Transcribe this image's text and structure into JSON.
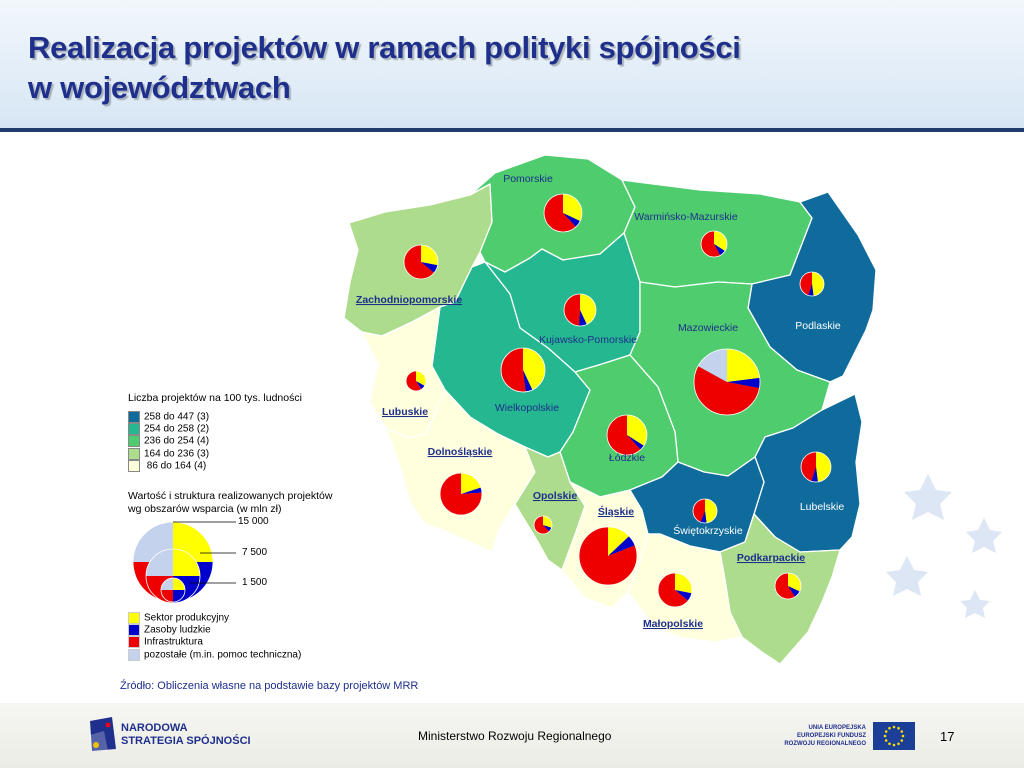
{
  "title": {
    "line1": "Realizacja projektów w ramach polityki spójności",
    "line2": "w  województwach"
  },
  "legend_density": {
    "title": "Liczba projektów na 100 tys. ludności",
    "classes": [
      {
        "label": "258 do 447  (3)",
        "color": "#0f6b9b"
      },
      {
        "label": "254 do 258  (2)",
        "color": "#25b890"
      },
      {
        "label": "236 do 254  (4)",
        "color": "#4fcc6e"
      },
      {
        "label": "164 do 236  (3)",
        "color": "#acdc8c"
      },
      {
        "label": "  86 do 164  (4)",
        "color": "#ffffdd"
      }
    ]
  },
  "legend_value": {
    "title_line1": "Wartość i struktura realizowanych projektów",
    "title_line2": "wg obszarów wsparcia (w mln zł)",
    "scale": [
      "15 000",
      "7 500",
      "1 500"
    ],
    "sectors": [
      {
        "label": "Sektor produkcyjny",
        "color": "#ffff00"
      },
      {
        "label": "Zasoby ludzkie",
        "color": "#0000cc"
      },
      {
        "label": "Infrastruktura",
        "color": "#ee0000"
      },
      {
        "label": "pozostałe (m.in. pomoc techniczna)",
        "color": "#c4d2ee"
      }
    ]
  },
  "regions": [
    {
      "name": "Pomorskie",
      "klass": 2,
      "underline": false
    },
    {
      "name": "Warmińsko-Mazurskie",
      "klass": 2,
      "underline": false
    },
    {
      "name": "Podlaskie",
      "klass": 0,
      "underline": false
    },
    {
      "name": "Zachodniopomorskie",
      "klass": 3,
      "underline": true
    },
    {
      "name": "Kujawsko-Pomorskie",
      "klass": 1,
      "underline": false
    },
    {
      "name": "Mazowieckie",
      "klass": 2,
      "underline": false
    },
    {
      "name": "Wielkopolskie",
      "klass": 1,
      "underline": false
    },
    {
      "name": "Lubuskie",
      "klass": 4,
      "underline": true
    },
    {
      "name": "Łódzkie",
      "klass": 2,
      "underline": false
    },
    {
      "name": "Lubelskie",
      "klass": 0,
      "underline": false
    },
    {
      "name": "Dolnośląskie",
      "klass": 4,
      "underline": true
    },
    {
      "name": "Opolskie",
      "klass": 3,
      "underline": true
    },
    {
      "name": "Śląskie",
      "klass": 4,
      "underline": true
    },
    {
      "name": "Świętokrzyskie",
      "klass": 0,
      "underline": false
    },
    {
      "name": "Podkarpackie",
      "klass": 3,
      "underline": true
    },
    {
      "name": "Małopolskie",
      "klass": 4,
      "underline": true
    }
  ],
  "pies": [
    {
      "region": "Pomorskie",
      "shares": [
        0.32,
        0.06,
        0.62,
        0.0
      ]
    },
    {
      "region": "Warmińsko-Mazurskie",
      "shares": [
        0.34,
        0.08,
        0.58,
        0.0
      ]
    },
    {
      "region": "Podlaskie",
      "shares": [
        0.48,
        0.07,
        0.45,
        0.0
      ]
    },
    {
      "region": "Zachodniopomorskie",
      "shares": [
        0.28,
        0.08,
        0.64,
        0.0
      ]
    },
    {
      "region": "Kujawsko-Pomorskie",
      "shares": [
        0.43,
        0.08,
        0.49,
        0.0
      ]
    },
    {
      "region": "Mazowieckie",
      "shares": [
        0.23,
        0.05,
        0.55,
        0.17
      ]
    },
    {
      "region": "Wielkopolskie",
      "shares": [
        0.43,
        0.05,
        0.52,
        0.0
      ]
    },
    {
      "region": "Lubuskie",
      "shares": [
        0.33,
        0.08,
        0.59,
        0.0
      ]
    },
    {
      "region": "Łódzkie",
      "shares": [
        0.34,
        0.04,
        0.62,
        0.0
      ]
    },
    {
      "region": "Lubelskie",
      "shares": [
        0.48,
        0.07,
        0.45,
        0.0
      ]
    },
    {
      "region": "Dolnośląskie",
      "shares": [
        0.2,
        0.04,
        0.76,
        0.0
      ]
    },
    {
      "region": "Opolskie",
      "shares": [
        0.3,
        0.08,
        0.62,
        0.0
      ]
    },
    {
      "region": "Śląskie",
      "shares": [
        0.13,
        0.06,
        0.81,
        0.0
      ]
    },
    {
      "region": "Świętokrzyskie",
      "shares": [
        0.48,
        0.08,
        0.44,
        0.0
      ]
    },
    {
      "region": "Podkarpackie",
      "shares": [
        0.32,
        0.09,
        0.59,
        0.0
      ]
    },
    {
      "region": "Małopolskie",
      "shares": [
        0.28,
        0.08,
        0.64,
        0.0
      ]
    }
  ],
  "source": "Źródło: Obliczenia własne na podstawie bazy projektów MRR",
  "footer": {
    "logo_line1": "NARODOWA",
    "logo_line2": "STRATEGIA SPÓJNOŚCI",
    "ministry": "Ministerstwo Rozwoju Regionalnego",
    "eu_line1": "UNIA EUROPEJSKA",
    "eu_line2": "EUROPEJSKI FUNDUSZ",
    "eu_line3": "ROZWOJU REGIONALNEGO",
    "page": "17"
  }
}
